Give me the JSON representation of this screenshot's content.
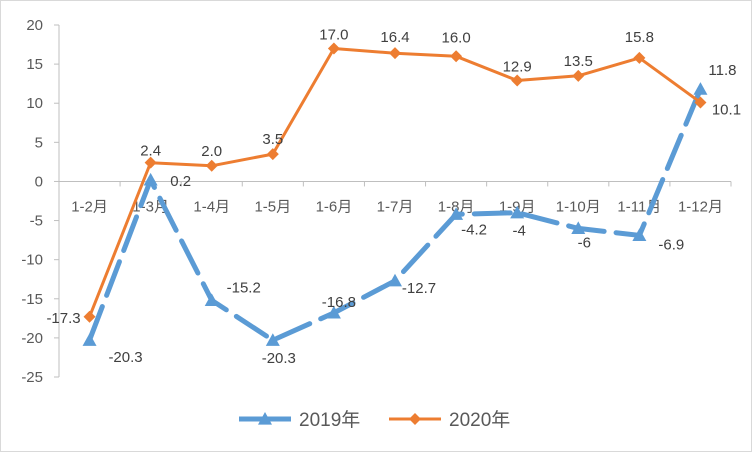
{
  "chart_data": {
    "type": "line",
    "title": "",
    "xlabel": "",
    "ylabel": "",
    "ylim": [
      -25,
      20
    ],
    "yticks": [
      20,
      15,
      10,
      5,
      0,
      -5,
      -10,
      -15,
      -20,
      -25
    ],
    "grid": false,
    "legend_position": "bottom",
    "categories": [
      "1-2月",
      "1-3月",
      "1-4月",
      "1-5月",
      "1-6月",
      "1-7月",
      "1-8月",
      "1-9月",
      "1-10月",
      "1-11月",
      "1-12月"
    ],
    "series": [
      {
        "name": "2019年",
        "color": "#5B9BD5",
        "marker": "triangle",
        "line_style": "dashed",
        "values": [
          -20.3,
          0.2,
          -15.2,
          -20.3,
          -16.8,
          -12.7,
          -4.2,
          -4,
          -6,
          -6.9,
          11.8
        ],
        "labels": [
          "-20.3",
          "0.2",
          "-15.2",
          "-20.3",
          "-16.8",
          "-12.7",
          "-4.2",
          "-4",
          "-6",
          "-6.9",
          "11.8"
        ]
      },
      {
        "name": "2020年",
        "color": "#ED7D31",
        "marker": "diamond",
        "line_style": "solid",
        "values": [
          -17.3,
          2.4,
          2.0,
          3.5,
          17.0,
          16.4,
          16.0,
          12.9,
          13.5,
          15.8,
          10.1
        ],
        "labels": [
          "-17.3",
          "2.4",
          "2.0",
          "3.5",
          "17.0",
          "16.4",
          "16.0",
          "12.9",
          "13.5",
          "15.8",
          "10.1"
        ]
      }
    ]
  }
}
